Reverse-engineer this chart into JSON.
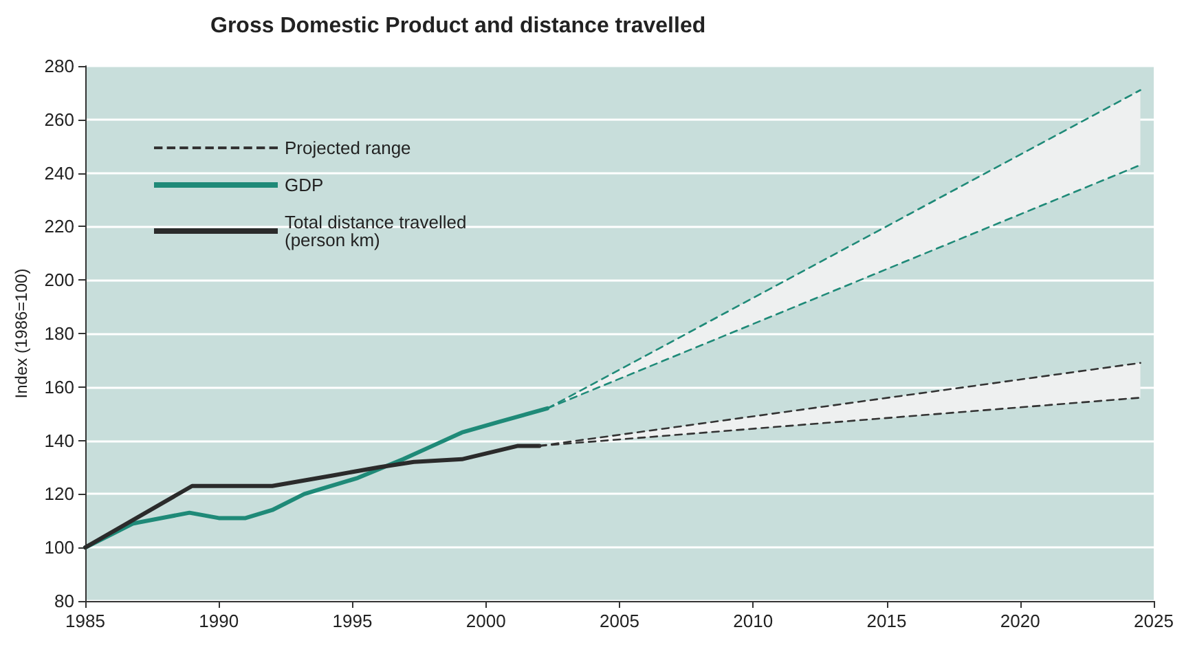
{
  "chart_data": {
    "type": "line",
    "title": "Gross Domestic Product and distance travelled",
    "ylabel": "Index (1986=100)",
    "xlim": [
      1985,
      2025
    ],
    "xticks": [
      1985,
      1990,
      1995,
      2000,
      2005,
      2010,
      2015,
      2020,
      2025
    ],
    "ylim": [
      80,
      280
    ],
    "yticks": [
      80,
      100,
      120,
      140,
      160,
      180,
      200,
      220,
      240,
      260,
      280
    ],
    "grid": "y",
    "legend": "top left",
    "marker": "none",
    "line_style": "solid",
    "series": [
      {
        "name": "Projected range",
        "color": "#333333",
        "line_style": "dashed",
        "x": [
          2002,
          2024.5
        ],
        "values": [
          138,
          169
        ],
        "lower": [
          138,
          156
        ],
        "upper": [
          138,
          169
        ]
      },
      {
        "name": "GDP",
        "color": "#1f8a78",
        "x": [
          1985,
          1986.8,
          1988.9,
          1990,
          1991,
          1992,
          1993.2,
          1995.2,
          1996.9,
          1998,
          1999.1,
          2000.5,
          2002.3
        ],
        "values": [
          100,
          109,
          113,
          111,
          111,
          114,
          120,
          126,
          133,
          138,
          143,
          147,
          152
        ]
      },
      {
        "name": "Total distance travelled\n(person km)",
        "color": "#2b2b2b",
        "x": [
          1985,
          1989,
          1992,
          1994.3,
          1996,
          1997.3,
          1999.1,
          2001.2,
          2002
        ],
        "values": [
          100,
          123,
          123,
          127,
          130,
          132,
          133,
          138,
          138
        ]
      },
      {
        "color": "#1f8a78",
        "line_style": "dashed",
        "x": [
          2002.3,
          2024.5
        ],
        "values": [
          152,
          271
        ],
        "lower": [
          152,
          243
        ],
        "upper": [
          152,
          271
        ]
      },
      {
        "color": "#333333",
        "line_style": "dashed",
        "x": [
          2002,
          2024.5
        ],
        "values": [
          138,
          156
        ]
      },
      {
        "color": "#1f8a78",
        "line_style": "dashed",
        "x": [
          2002.3,
          2024.5
        ],
        "values": [
          152,
          243
        ]
      }
    ]
  }
}
